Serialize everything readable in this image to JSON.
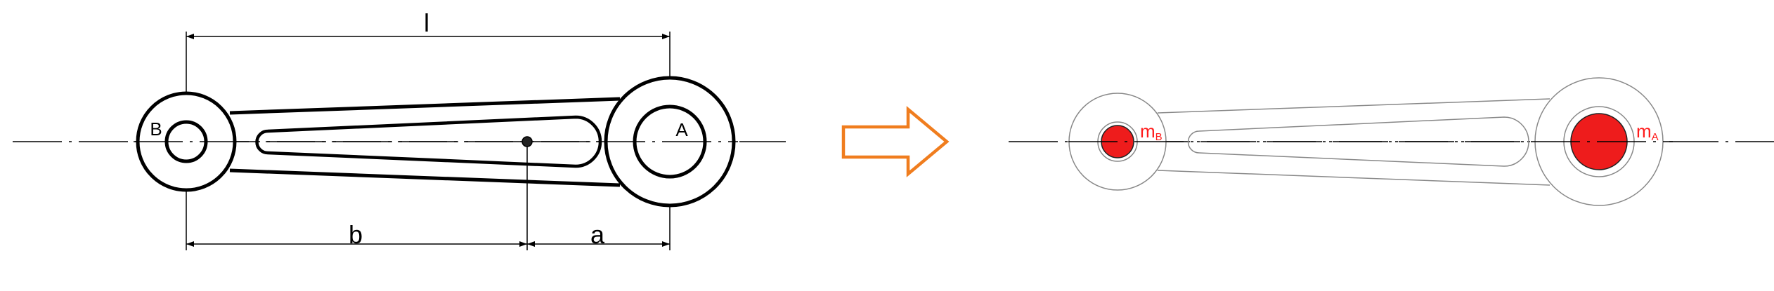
{
  "left_drawing": {
    "dimension_l": "l",
    "dimension_b": "b",
    "dimension_a": "a",
    "point_b": "B",
    "point_a": "A"
  },
  "arrow": {
    "color": "#f07d1e"
  },
  "right_drawing": {
    "mass_b": {
      "symbol": "m",
      "subscript": "B"
    },
    "mass_a": {
      "symbol": "m",
      "subscript": "A"
    },
    "mass_color": "#ee1c1c"
  }
}
